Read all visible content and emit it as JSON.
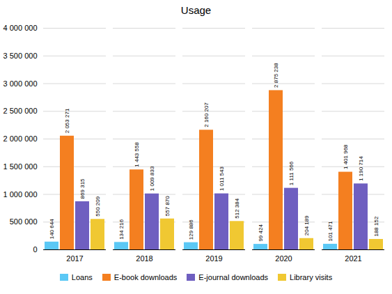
{
  "chart_data": {
    "type": "bar",
    "title": "Usage",
    "categories": [
      "2017",
      "2018",
      "2019",
      "2020",
      "2021"
    ],
    "series": [
      {
        "name": "Loans",
        "color": "#5bc8f5",
        "values": [
          140644,
          134216,
          129886,
          99424,
          101471
        ],
        "value_labels": [
          "140 644",
          "134 216",
          "129 886",
          "99 424",
          "101 471"
        ]
      },
      {
        "name": "E-book downloads",
        "color": "#f47f20",
        "values": [
          2053271,
          1443558,
          2160207,
          2875238,
          1401968
        ],
        "value_labels": [
          "2 053 271",
          "1 443 558",
          "2 160 207",
          "2 875 238",
          "1 401 968"
        ]
      },
      {
        "name": "E-journal downloads",
        "color": "#6f5fc0",
        "values": [
          869315,
          1009833,
          1011543,
          1111566,
          1190714
        ],
        "value_labels": [
          "869 315",
          "1 009 833",
          "1 011 543",
          "1 111 566",
          "1 190 714"
        ]
      },
      {
        "name": "Library visits",
        "color": "#f0c832",
        "values": [
          550209,
          557870,
          512384,
          204189,
          188152
        ],
        "value_labels": [
          "550 209",
          "557 870",
          "512 384",
          "204 189",
          "188 152"
        ]
      }
    ],
    "ylim": [
      0,
      4000000
    ],
    "yticks": [
      0,
      {
        "value": 500000,
        "label": "500 000"
      },
      {
        "value": 1000000,
        "label": "1 000 000"
      },
      {
        "value": 1500000,
        "label": "1 500 000"
      },
      {
        "value": 2000000,
        "label": "2 000 000"
      },
      {
        "value": 2500000,
        "label": "2 500 000"
      },
      {
        "value": 3000000,
        "label": "3 000 000"
      },
      {
        "value": 3500000,
        "label": "3 500 000"
      },
      {
        "value": 4000000,
        "label": "4 000 000"
      }
    ],
    "grid": true,
    "data_labels": true,
    "legend": "bottom"
  }
}
